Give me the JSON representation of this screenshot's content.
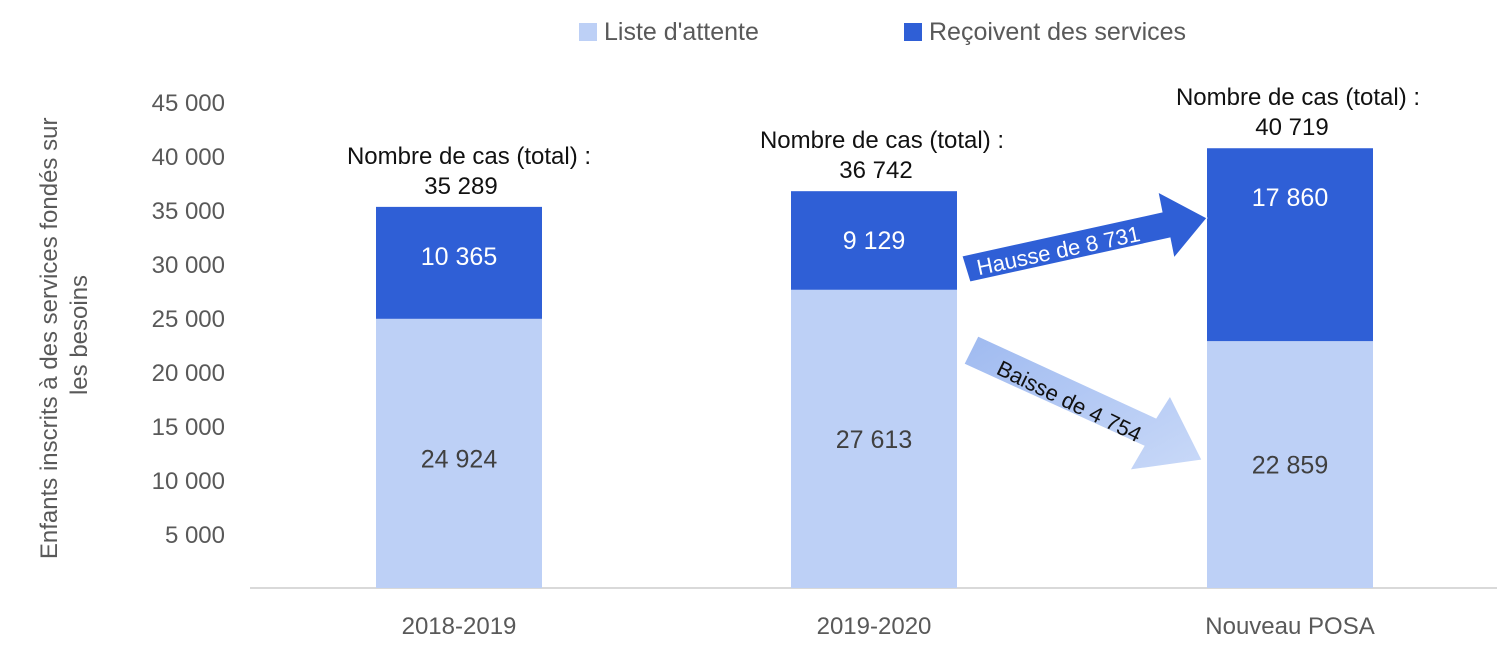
{
  "chart_data": {
    "type": "bar",
    "stacked": true,
    "categories": [
      "2018-2019",
      "2019-2020",
      "Nouveau POSA"
    ],
    "series": [
      {
        "name": "Liste d'attente",
        "values": [
          24924,
          27613,
          22859
        ],
        "color": "#bdd0f6",
        "labels": [
          "24 924",
          "27 613",
          "22 859"
        ]
      },
      {
        "name": "Reçoivent des services",
        "values": [
          10365,
          9129,
          17860
        ],
        "color": "#2f5fd6",
        "labels": [
          "10 365",
          "9 129",
          "17 860"
        ]
      }
    ],
    "totals": [
      {
        "label": "Nombre de cas (total) :",
        "value": "35 289"
      },
      {
        "label": "Nombre de cas (total) :",
        "value": "36 742"
      },
      {
        "label": "Nombre de cas (total) :",
        "value": "40 719"
      }
    ],
    "ylabel": "Enfants inscrits à des services fondés sur les besoins",
    "ylabel_lines": [
      "Enfants inscrits à des services fondés sur",
      "les besoins"
    ],
    "ylim": [
      0,
      45000
    ],
    "yticks": [
      "5 000",
      "10 000",
      "15 000",
      "20 000",
      "25 000",
      "30 000",
      "35 000",
      "40 000",
      "45 000"
    ],
    "legend_position": "top-center",
    "grid": false,
    "annotations": [
      {
        "text": "Hausse de 8 731",
        "color": "#2f5fd6"
      },
      {
        "text": "Baisse de 4 754",
        "color": "#bdd0f6"
      }
    ]
  }
}
